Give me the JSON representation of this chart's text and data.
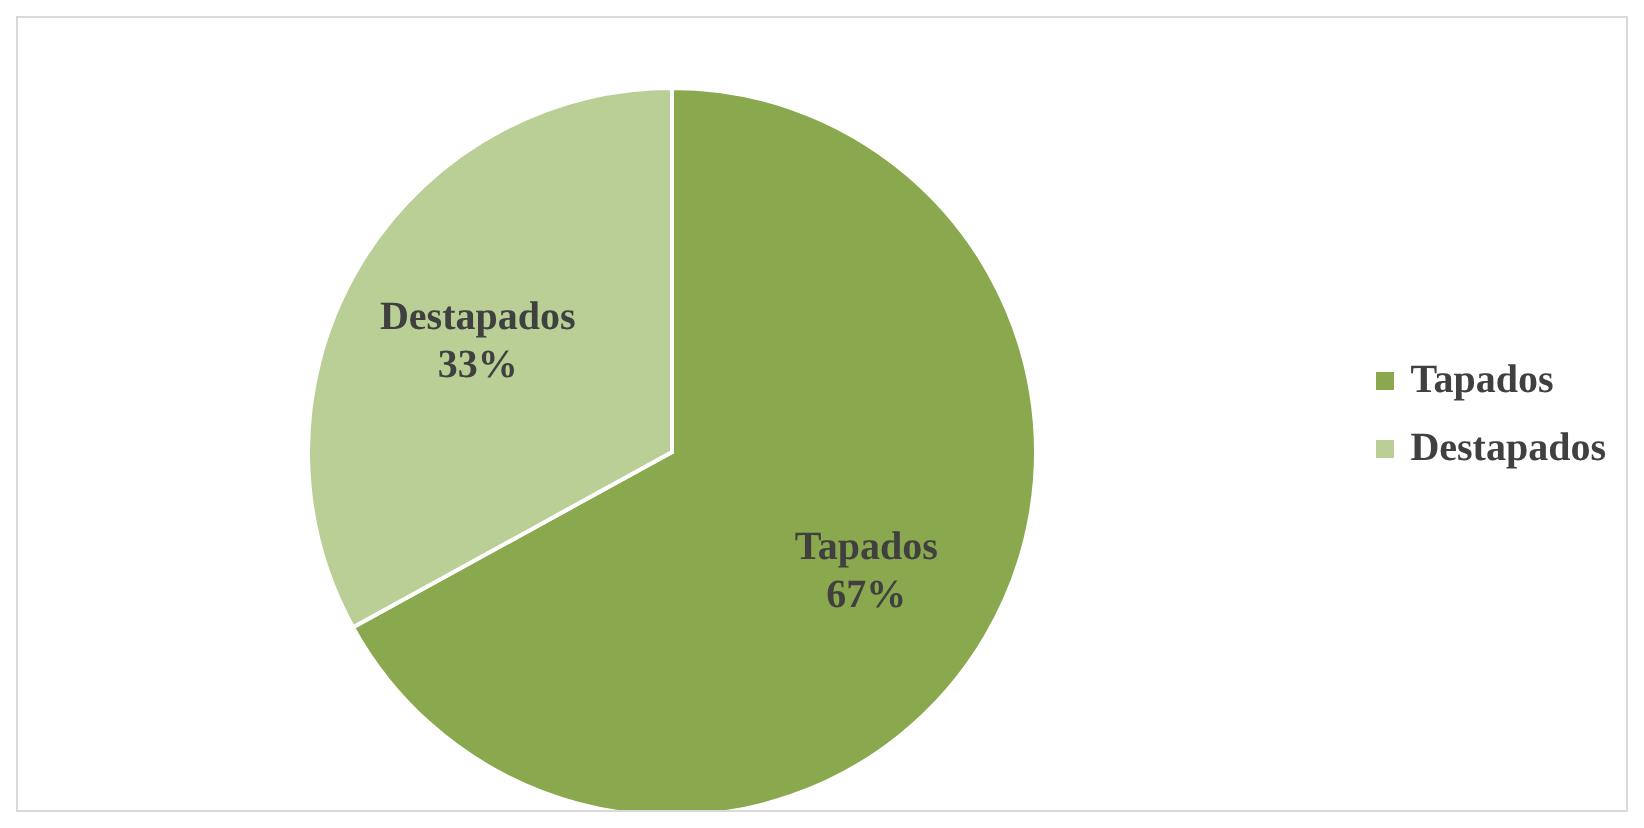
{
  "chart_data": {
    "type": "pie",
    "categories": [
      "Tapados",
      "Destapados"
    ],
    "values": [
      67,
      33
    ],
    "value_labels": [
      "67%",
      "33%"
    ],
    "colors": [
      "#8aa84e",
      "#b9cf95"
    ],
    "legend": "right"
  }
}
